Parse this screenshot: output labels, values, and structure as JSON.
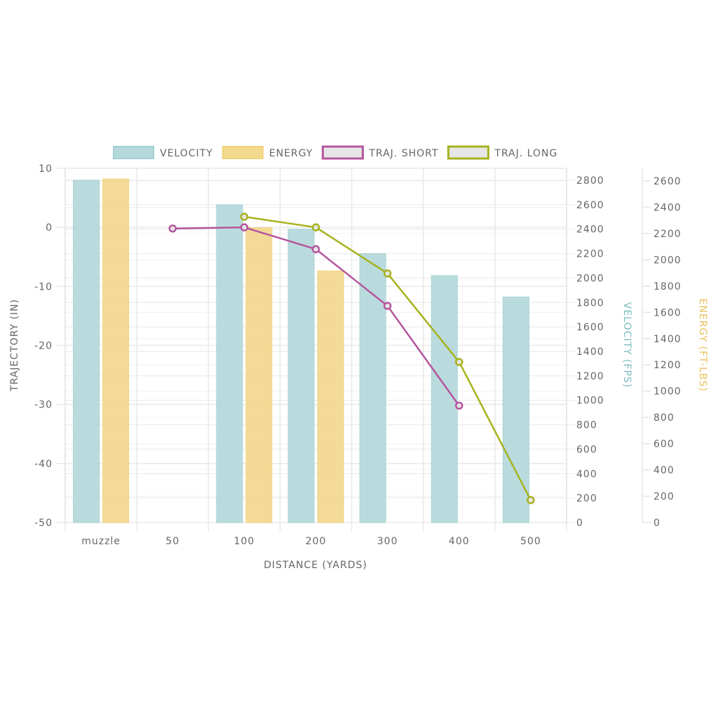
{
  "chart_data": {
    "type": "bar",
    "categories": [
      "muzzle",
      "50",
      "100",
      "200",
      "300",
      "400",
      "500"
    ],
    "xlabel": "DISTANCE (YARDS)",
    "axes": {
      "trajectory": {
        "label": "TRAJECTORY (IN)",
        "range": [
          -50,
          10
        ],
        "ticks": [
          10,
          0,
          -10,
          -20,
          -30,
          -40,
          -50
        ],
        "position": "left"
      },
      "velocity": {
        "label": "VELOCITY (FPS)",
        "range": [
          0,
          2800
        ],
        "ticks": [
          0,
          200,
          400,
          600,
          800,
          1000,
          1200,
          1400,
          1600,
          1800,
          2000,
          2200,
          2400,
          2600,
          2800
        ],
        "position": "right",
        "color": "#7bbcbe"
      },
      "energy": {
        "label": "ENERGY (FT-LBS)",
        "range": [
          0,
          2600
        ],
        "ticks": [
          0,
          200,
          400,
          600,
          800,
          1000,
          1200,
          1400,
          1600,
          1800,
          2000,
          2200,
          2400,
          2600
        ],
        "position": "right",
        "color": "#e8c15a"
      }
    },
    "legend_placement": "top",
    "grid": true,
    "series": [
      {
        "name": "VELOCITY",
        "kind": "bar",
        "axis": "velocity",
        "color": "#b5d9db",
        "border": "#a2cfd1",
        "values": [
          2800,
          null,
          2600,
          2400,
          2200,
          2020,
          1845
        ]
      },
      {
        "name": "ENERGY",
        "kind": "bar",
        "axis": "energy",
        "color": "#f3d98f",
        "border": "#f0d27a",
        "values": [
          2615,
          null,
          2245,
          1915,
          null,
          null,
          null
        ]
      },
      {
        "name": "TRAJ. SHORT",
        "kind": "line",
        "axis": "trajectory",
        "color": "#b5569e",
        "values": [
          null,
          -0.2,
          0,
          -3.7,
          -13.3,
          -30.2,
          null
        ]
      },
      {
        "name": "TRAJ. LONG",
        "kind": "line",
        "axis": "trajectory",
        "color": "#a7b21e",
        "values": [
          null,
          null,
          1.8,
          0,
          -7.8,
          -22.8,
          -46.2
        ]
      }
    ]
  }
}
